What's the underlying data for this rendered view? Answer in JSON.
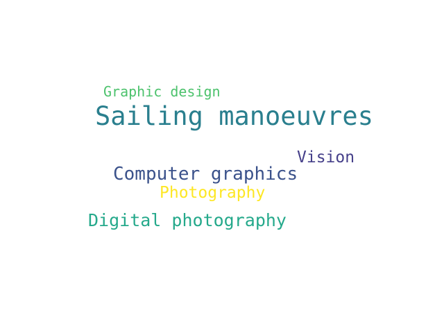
{
  "word_cloud": {
    "words": [
      {
        "text": "Graphic design",
        "color": "#4cc26c"
      },
      {
        "text": "Sailing manoeuvres",
        "color": "#2a7f8e"
      },
      {
        "text": "Vision",
        "color": "#46408a"
      },
      {
        "text": "Computer graphics",
        "color": "#3b528b"
      },
      {
        "text": "Photography",
        "color": "#fde725"
      },
      {
        "text": "Digital photography",
        "color": "#25a98b"
      }
    ]
  }
}
